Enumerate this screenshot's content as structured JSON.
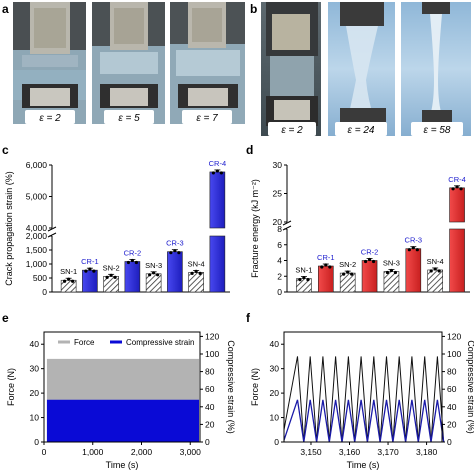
{
  "panels": {
    "a": {
      "letter": "a",
      "photos": [
        {
          "label": "ε = 2"
        },
        {
          "label": "ε = 5"
        },
        {
          "label": "ε = 7"
        }
      ]
    },
    "b": {
      "letter": "b",
      "photos": [
        {
          "label": "ε = 2"
        },
        {
          "label": "ε = 24"
        },
        {
          "label": "ε = 58"
        }
      ]
    },
    "c": {
      "letter": "c"
    },
    "d": {
      "letter": "d"
    },
    "e": {
      "letter": "e"
    },
    "f": {
      "letter": "f"
    }
  },
  "colors": {
    "blue_bar": "#2b2bdc",
    "red_bar": "#e53030",
    "label_blue": "#1a1acd",
    "strain_line": "#1a1aa8",
    "force_fill": "#b3b3b3"
  },
  "chart_data": [
    {
      "id": "c",
      "type": "bar",
      "ylabel": "Crack propagation strain (%)",
      "axis_break": true,
      "lower_ylim": [
        0,
        2000
      ],
      "upper_ylim": [
        4000,
        6000
      ],
      "lower_ticks": [
        "0",
        "500",
        "1,000",
        "1,500",
        "2,000"
      ],
      "upper_ticks": [
        "4,000",
        "5,000",
        "6,000"
      ],
      "categories": [
        "SN-1",
        "CR-1",
        "SN-2",
        "CR-2",
        "SN-3",
        "CR-3",
        "SN-4",
        "CR-4"
      ],
      "values": [
        420,
        780,
        560,
        1090,
        650,
        1440,
        700,
        5780
      ],
      "bar_style": [
        "hatched",
        "blue",
        "hatched",
        "blue",
        "hatched",
        "blue",
        "hatched",
        "blue"
      ]
    },
    {
      "id": "d",
      "type": "bar",
      "ylabel": "Fracture energy (kJ m⁻²)",
      "axis_break": true,
      "lower_ylim": [
        0,
        8
      ],
      "upper_ylim": [
        20,
        30
      ],
      "lower_ticks": [
        "0",
        "2",
        "4",
        "6",
        "8"
      ],
      "upper_ticks": [
        "20",
        "25",
        "30"
      ],
      "categories": [
        "SN-1",
        "CR-1",
        "SN-2",
        "CR-2",
        "SN-3",
        "CR-3",
        "SN-4",
        "CR-4"
      ],
      "values": [
        1.7,
        3.3,
        2.4,
        4.0,
        2.6,
        5.5,
        2.8,
        26
      ],
      "bar_style": [
        "hatched",
        "red",
        "hatched",
        "red",
        "hatched",
        "red",
        "hatched",
        "red"
      ]
    },
    {
      "id": "e",
      "type": "area",
      "xlabel": "Time (s)",
      "ylabel_left": "Force (N)",
      "ylabel_right": "Compressive strain (%)",
      "xlim": [
        0,
        3200
      ],
      "x_ticks": [
        "0",
        "1,000",
        "2,000",
        "3,000"
      ],
      "y_left_ticks": [
        "0",
        "10",
        "20",
        "30",
        "40"
      ],
      "y_right_ticks": [
        "0",
        "20",
        "40",
        "60",
        "80",
        "100",
        "120"
      ],
      "ylim_left": [
        0,
        40
      ],
      "ylim_right": [
        0,
        120
      ],
      "legend": [
        "Force",
        "Compressive strain"
      ],
      "series": [
        {
          "name": "Force",
          "min": 0,
          "max": 34
        },
        {
          "name": "Compressive strain",
          "min": 0,
          "max": 48
        }
      ]
    },
    {
      "id": "f",
      "type": "line",
      "xlabel": "Time (s)",
      "ylabel_left": "Force (N)",
      "ylabel_right": "Compressive strain (%)",
      "xlim": [
        3143,
        3184
      ],
      "x_ticks": [
        "3,150",
        "3,160",
        "3,170",
        "3,180"
      ],
      "y_left_ticks": [
        "0",
        "10",
        "20",
        "30",
        "40"
      ],
      "y_right_ticks": [
        "0",
        "20",
        "40",
        "60",
        "80",
        "100",
        "120"
      ],
      "ylim_left": [
        0,
        40
      ],
      "ylim_right": [
        0,
        120
      ],
      "cycles": 12,
      "first_peak_time": 3146.5,
      "period": 3.3,
      "series": [
        {
          "name": "Force",
          "peak": 35
        },
        {
          "name": "Compressive strain",
          "peak": 48
        }
      ]
    }
  ]
}
